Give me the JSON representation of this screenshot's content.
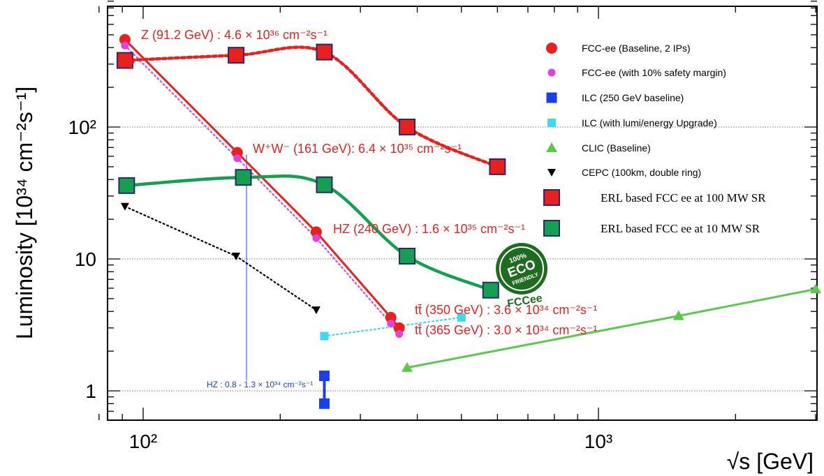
{
  "chart_data": {
    "type": "scatter",
    "x_scale": "log",
    "y_scale": "log",
    "xlim": [
      80,
      4500
    ],
    "ylim": [
      0.6,
      1600
    ],
    "grid": "horizontal dotted at 1, 10, 100",
    "legend_position": "right",
    "xlabel": "√s [GeV]",
    "ylabel": "Luminosity [10³⁴ cm⁻²s⁻¹]",
    "x_ticks": [
      {
        "value": 100,
        "label": "10²"
      },
      {
        "value": 1000,
        "label": "10³"
      }
    ],
    "y_ticks": [
      {
        "value": 1,
        "label": "1"
      },
      {
        "value": 10,
        "label": "10"
      },
      {
        "value": 100,
        "label": "10²"
      }
    ],
    "series": [
      {
        "name": "FCC-ee (Baseline, 2 IPs)",
        "color": "#e8201e",
        "marker": "circle",
        "line": "solid",
        "points": [
          [
            91.2,
            460
          ],
          [
            161,
            64
          ],
          [
            240,
            16
          ],
          [
            350,
            3.6
          ],
          [
            365,
            3.0
          ]
        ]
      },
      {
        "name": "FCC-ee (with 10% safety margin)",
        "color": "#e040e0",
        "marker": "small-circle",
        "line": "dotted",
        "points": [
          [
            91.2,
            415
          ],
          [
            161,
            58
          ],
          [
            240,
            14.4
          ],
          [
            350,
            3.24
          ],
          [
            365,
            2.7
          ]
        ]
      },
      {
        "name": "ILC (250 GeV baseline)",
        "color": "#1a3ee8",
        "marker": "square",
        "line": "solid",
        "points": [
          [
            250,
            0.8
          ],
          [
            250,
            1.3
          ]
        ]
      },
      {
        "name": "ILC (with lumi/energy Upgrade)",
        "color": "#3fd8f0",
        "marker": "small-square",
        "line": "dotted",
        "points": [
          [
            250,
            2.6
          ],
          [
            500,
            3.6
          ]
        ]
      },
      {
        "name": "CLIC (Baseline)",
        "color": "#5ac84a",
        "marker": "triangle-up",
        "line": "solid",
        "points": [
          [
            380,
            1.5
          ],
          [
            1500,
            3.7
          ],
          [
            3000,
            5.9
          ]
        ]
      },
      {
        "name": "CEPC (100km, double ring)",
        "color": "#000000",
        "marker": "triangle-down",
        "line": "dotted",
        "points": [
          [
            91.2,
            25
          ],
          [
            160,
            10.5
          ],
          [
            240,
            4.1
          ]
        ]
      },
      {
        "name": "ERL based FCC ee at 100 MW SR",
        "color": "#e8201e",
        "marker": "big-square",
        "line": "dashed-curve",
        "points": [
          [
            91.2,
            320
          ],
          [
            160,
            350
          ],
          [
            250,
            370
          ],
          [
            380,
            100
          ],
          [
            600,
            50
          ]
        ]
      },
      {
        "name": "ERL based FCC ee at 10 MW SR",
        "color": "#14a050",
        "marker": "big-square",
        "line": "solid-curve",
        "points": [
          [
            92,
            36
          ],
          [
            166,
            41.5
          ],
          [
            250,
            36.5
          ],
          [
            380,
            10.5
          ],
          [
            580,
            5.8
          ]
        ]
      }
    ],
    "annotations": [
      {
        "text": "Z (91.2 GeV) : 4.6 × 10³⁶ cm⁻²s⁻¹",
        "color": "#e8201e"
      },
      {
        "text": "W⁺W⁻ (161 GeV): 6.4 × 10³⁵ cm⁻²s⁻¹",
        "color": "#e8201e"
      },
      {
        "text": "HZ (240 GeV) : 1.6 × 10³⁵ cm⁻²s⁻¹",
        "color": "#e8201e"
      },
      {
        "text": "tt̄ (350 GeV) : 3.6 × 10³⁴ cm⁻²s⁻¹",
        "color": "#e8201e"
      },
      {
        "text": "tt̄ (365 GeV) : 3.0 × 10³⁴ cm⁻²s⁻¹",
        "color": "#e8201e"
      },
      {
        "text": "HZ : 0.8 - 1.3 × 10³⁴ cm⁻²s⁻¹",
        "color": "#1a3ecc"
      },
      {
        "text": "?",
        "color": "#e8201e"
      },
      {
        "text": "?",
        "color": "#e8201e"
      }
    ],
    "stamp": {
      "text_top": "100%",
      "text_main": "ECO",
      "text_bottom": "FRIENDLY",
      "caption": "FCCee",
      "color": "#1f6b1f"
    }
  }
}
